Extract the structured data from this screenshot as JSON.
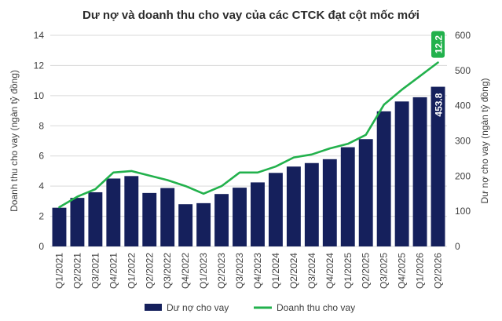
{
  "chart_data": {
    "type": "bar+line",
    "title": "Dư nợ và doanh thu cho vay của các CTCK đạt cột mốc mới",
    "categories": [
      "Q1/2021",
      "Q2/2021",
      "Q3/2021",
      "Q4/2021",
      "Q1/2022",
      "Q2/2022",
      "Q3/2022",
      "Q4/2022",
      "Q1/2023",
      "Q2/2023",
      "Q3/2023",
      "Q4/2023",
      "Q1/2024",
      "Q2/2024",
      "Q3/2024",
      "Q4/2024",
      "Q1/2025",
      "Q2/2025",
      "Q3/2025",
      "Q4/2025",
      "Q1/2026",
      "Q2/2026"
    ],
    "y_left": {
      "label": "Doanh thu cho vay (ngàn tỷ đồng)",
      "min": 0,
      "max": 14,
      "step": 2
    },
    "y_right": {
      "label": "Dư nợ cho vay (ngàn tỷ đồng)",
      "min": 0,
      "max": 600,
      "step": 100
    },
    "series": [
      {
        "name": "Dư nợ cho vay",
        "type": "bar",
        "axis": "right",
        "color": "#15205c",
        "values": [
          110,
          138,
          154,
          193,
          200,
          152,
          166,
          120,
          123,
          149,
          167,
          182,
          209,
          227,
          237,
          248,
          282,
          305,
          384,
          412,
          424,
          453.8
        ],
        "last_label": "453.8"
      },
      {
        "name": "Doanh thu cho vay",
        "type": "line",
        "axis": "left",
        "color": "#22b14c",
        "values": [
          2.6,
          3.3,
          3.8,
          4.9,
          5.0,
          4.7,
          4.4,
          4.0,
          3.5,
          4.0,
          4.9,
          4.9,
          5.3,
          5.9,
          6.1,
          6.5,
          6.8,
          7.4,
          9.4,
          10.4,
          11.3,
          12.2
        ],
        "last_label": "12.2"
      }
    ],
    "grid": true,
    "legend_position": "bottom"
  }
}
